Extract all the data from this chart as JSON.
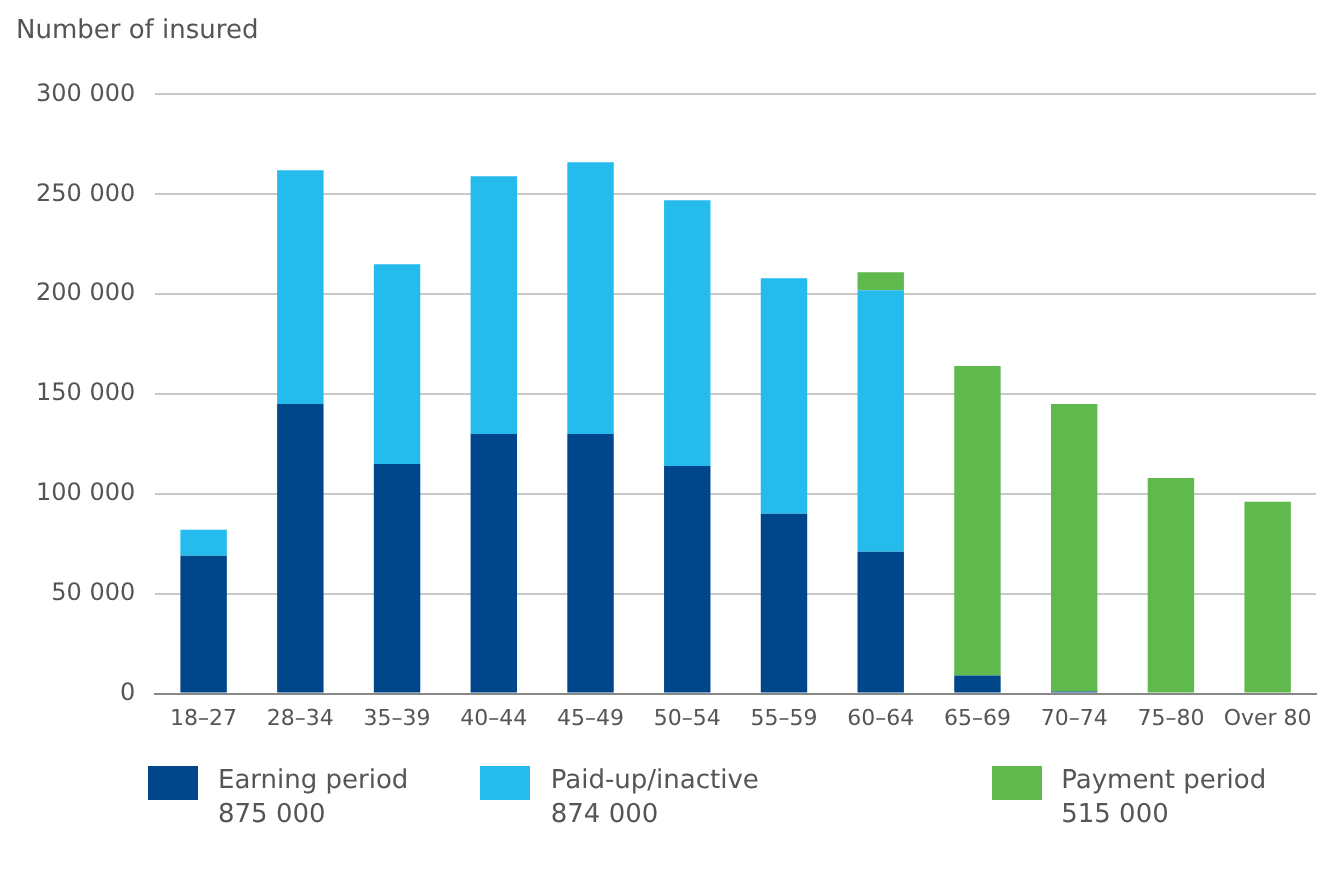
{
  "chart_data": {
    "type": "bar",
    "ylabel": "Number of insured",
    "stacked": true,
    "legend": "bottom",
    "grid": "y",
    "categories": [
      "18–27",
      "28–34",
      "35–39",
      "40–44",
      "45–49",
      "50–54",
      "55–59",
      "60–64",
      "65–69",
      "70–74",
      "75–80",
      "Over 80"
    ],
    "series": [
      {
        "name": "Earning period",
        "color": "#00468b",
        "values": [
          69000,
          145000,
          115000,
          130000,
          130000,
          114000,
          90000,
          71000,
          9000,
          1000,
          0,
          0
        ]
      },
      {
        "name": "Paid-up/inactive",
        "color": "#25bbed",
        "values": [
          13000,
          117000,
          100000,
          129000,
          136000,
          133000,
          118000,
          131000,
          0,
          0,
          0,
          0
        ]
      },
      {
        "name": "Payment period",
        "color": "#5fb94c",
        "values": [
          0,
          0,
          0,
          0,
          0,
          0,
          0,
          9000,
          155000,
          144000,
          108000,
          96000
        ]
      }
    ],
    "ylim": [
      0,
      300000
    ],
    "yticks": [
      {
        "value": 0,
        "label": "0"
      },
      {
        "value": 50000,
        "label": "50 000"
      },
      {
        "value": 100000,
        "label": "100 000"
      },
      {
        "value": 150000,
        "label": "150 000"
      },
      {
        "value": 200000,
        "label": "200 000"
      },
      {
        "value": 250000,
        "label": "250 000"
      },
      {
        "value": 300000,
        "label": "300 000"
      }
    ],
    "annotations": [
      "875 000",
      "874 000",
      "515 000"
    ]
  }
}
